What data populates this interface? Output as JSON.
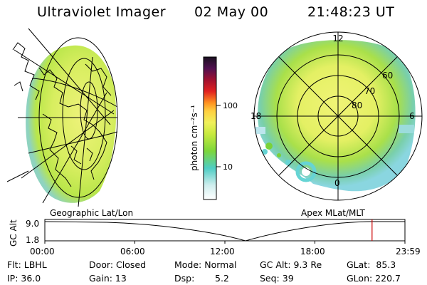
{
  "header": {
    "title": "Ultraviolet Imager",
    "date": "02 May 00",
    "time": "21:48:23 UT"
  },
  "colorbar": {
    "unit_label": "photon cm⁻²s⁻¹",
    "ticks": [
      "100",
      "10"
    ]
  },
  "polar_plot": {
    "mlt_labels": [
      "12",
      "18",
      "6",
      "0"
    ],
    "mlat_labels": [
      "60",
      "70",
      "80"
    ]
  },
  "panel_labels": {
    "geo": "Geographic Lat/Lon",
    "apex": "Apex MLat/MLT"
  },
  "altitude_plot": {
    "ylabel": "GC Alt",
    "yticks": [
      "9.0",
      "1.8"
    ],
    "xticks": [
      "00:00",
      "06:00",
      "12:00",
      "18:00",
      "23:59"
    ],
    "current_time_hours": 21.81
  },
  "info": {
    "filter": "Flt: LBHL",
    "door": "Door: Closed",
    "mode": "Mode: Normal",
    "gc_alt": "GC Alt: 9.3 Re",
    "glat": "GLat:  85.3",
    "ip": "IP: 36.0",
    "gain": "Gain: 13",
    "dsp": "Dsp:",
    "dsp_value": "5.2",
    "seq": "Seq: 39",
    "glon": "GLon: 220.7"
  },
  "colors": {
    "aurora_main": "#e6f26a",
    "aurora_green": "#8fd93a",
    "aurora_cyan": "#66d4d4",
    "marker_red": "#cc0000"
  }
}
